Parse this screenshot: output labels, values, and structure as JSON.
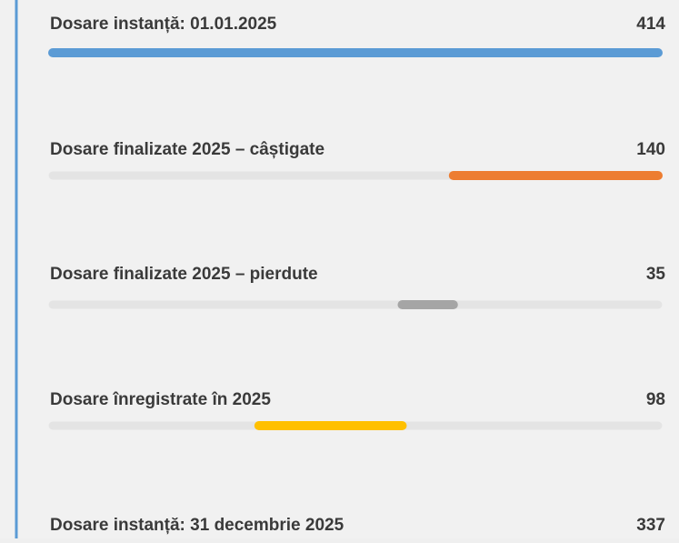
{
  "chart_data": {
    "type": "waterfall",
    "categories": [
      "Dosare instanță: 01.01.2025",
      "Dosare finalizate 2025 – câștigate",
      "Dosare finalizate 2025 – pierdute",
      "Dosare înregistrate în 2025",
      "Dosare instanță: 31 decembrie 2025"
    ],
    "values": [
      414,
      140,
      35,
      98,
      337
    ],
    "colors": [
      "#5b9bd5",
      "#ed7d31",
      "#a5a5a5",
      "#ffc000",
      "#5b9bd5"
    ]
  }
}
